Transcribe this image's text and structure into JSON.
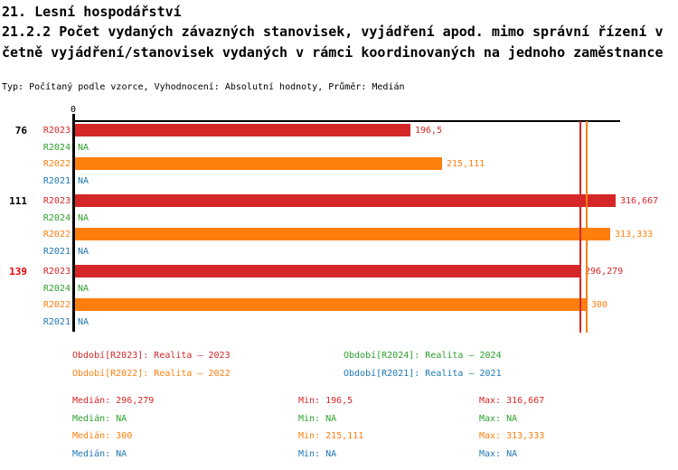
{
  "title": {
    "line1": "21. Lesní hospodářství",
    "line2": "21.2.2 Počet vydaných závazných stanovisek, vyjádření apod. mimo správní řízení v",
    "line3": "četně vyjádření/stanovisek vydaných v rámci koordinovaných na jednoho zaměstnance",
    "meta": "Typ: Počítaný podle vzorce, Vyhodnocení: Absolutní hodnoty, Průměr: Medián"
  },
  "colors": {
    "r2023": "#d62728",
    "r2024": "#2ca02c",
    "r2022": "#ff7f0e",
    "r2021": "#1f77b4",
    "highlight_group_label": "#ee0000",
    "axis": "#000000"
  },
  "chart_data": {
    "type": "bar",
    "orientation": "horizontal",
    "x_axis": {
      "zero_label": "0",
      "min": 0
    },
    "na_text": "NA",
    "series_legend": [
      "R2023",
      "R2024",
      "R2022",
      "R2021"
    ],
    "groups": [
      {
        "label": "76",
        "label_color": "#000000",
        "rows": [
          {
            "series": "R2023",
            "color": "#d62728",
            "value": 196.5,
            "display": "196,5"
          },
          {
            "series": "R2024",
            "color": "#2ca02c",
            "value": null,
            "display": "NA"
          },
          {
            "series": "R2022",
            "color": "#ff7f0e",
            "value": 215.111,
            "display": "215,111"
          },
          {
            "series": "R2021",
            "color": "#1f77b4",
            "value": null,
            "display": "NA"
          }
        ]
      },
      {
        "label": "111",
        "label_color": "#000000",
        "rows": [
          {
            "series": "R2023",
            "color": "#d62728",
            "value": 316.667,
            "display": "316,667"
          },
          {
            "series": "R2024",
            "color": "#2ca02c",
            "value": null,
            "display": "NA"
          },
          {
            "series": "R2022",
            "color": "#ff7f0e",
            "value": 313.333,
            "display": "313,333"
          },
          {
            "series": "R2021",
            "color": "#1f77b4",
            "value": null,
            "display": "NA"
          }
        ]
      },
      {
        "label": "139",
        "label_color": "#ee0000",
        "rows": [
          {
            "series": "R2023",
            "color": "#d62728",
            "value": 296.279,
            "display": "296,279"
          },
          {
            "series": "R2024",
            "color": "#2ca02c",
            "value": null,
            "display": "NA"
          },
          {
            "series": "R2022",
            "color": "#ff7f0e",
            "value": 300,
            "display": "300"
          },
          {
            "series": "R2021",
            "color": "#1f77b4",
            "value": null,
            "display": "NA"
          }
        ]
      }
    ],
    "reference_lines": [
      {
        "meaning": "median-R2023",
        "value": 296.279,
        "color": "#d62728"
      },
      {
        "meaning": "median-R2022",
        "value": 300,
        "color": "#ff7f0e"
      }
    ]
  },
  "legend": {
    "items": [
      {
        "label": "Období[R2023]: Realita – 2023",
        "color": "#d62728"
      },
      {
        "label": "Období[R2024]: Realita – 2024",
        "color": "#2ca02c"
      },
      {
        "label": "Období[R2022]: Realita – 2022",
        "color": "#ff7f0e"
      },
      {
        "label": "Období[R2021]: Realita – 2021",
        "color": "#1f77b4"
      }
    ]
  },
  "stats": {
    "labels": {
      "median": "Medián",
      "min": "Min",
      "max": "Max"
    },
    "rows": [
      {
        "series": "R2023",
        "color": "#d62728",
        "median": "296,279",
        "min": "196,5",
        "max": "316,667"
      },
      {
        "series": "R2024",
        "color": "#2ca02c",
        "median": "NA",
        "min": "NA",
        "max": "NA"
      },
      {
        "series": "R2022",
        "color": "#ff7f0e",
        "median": "300",
        "min": "215,111",
        "max": "313,333"
      },
      {
        "series": "R2021",
        "color": "#1f77b4",
        "median": "NA",
        "min": "NA",
        "max": "NA"
      }
    ]
  }
}
